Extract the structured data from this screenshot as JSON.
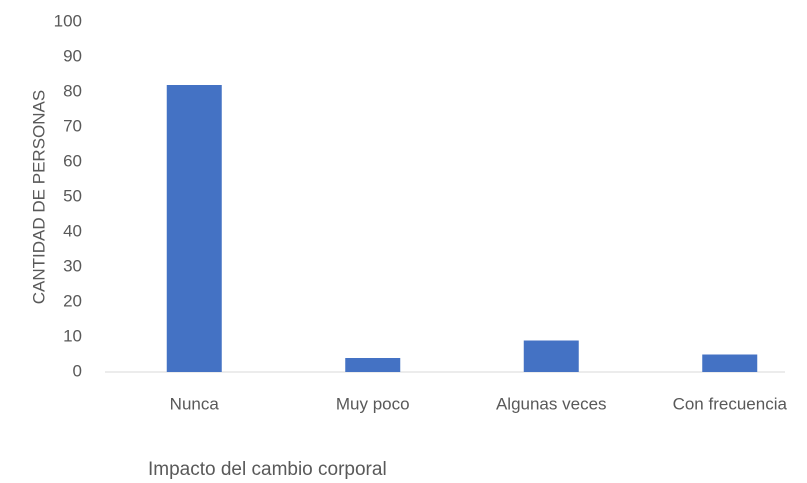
{
  "chart_data": {
    "type": "bar",
    "x_label": "Impacto del cambio corporal",
    "y_label": "CANTIDAD DE PERSONAS",
    "categories": [
      "Nunca",
      "Muy poco",
      "Algunas veces",
      "Con frecuencia"
    ],
    "values": [
      82,
      4,
      9,
      5
    ],
    "color": "#4472c4",
    "ylim": [
      0,
      100
    ],
    "yticks": [
      0,
      10,
      20,
      30,
      40,
      50,
      60,
      70,
      80,
      90,
      100
    ],
    "grid": false
  }
}
